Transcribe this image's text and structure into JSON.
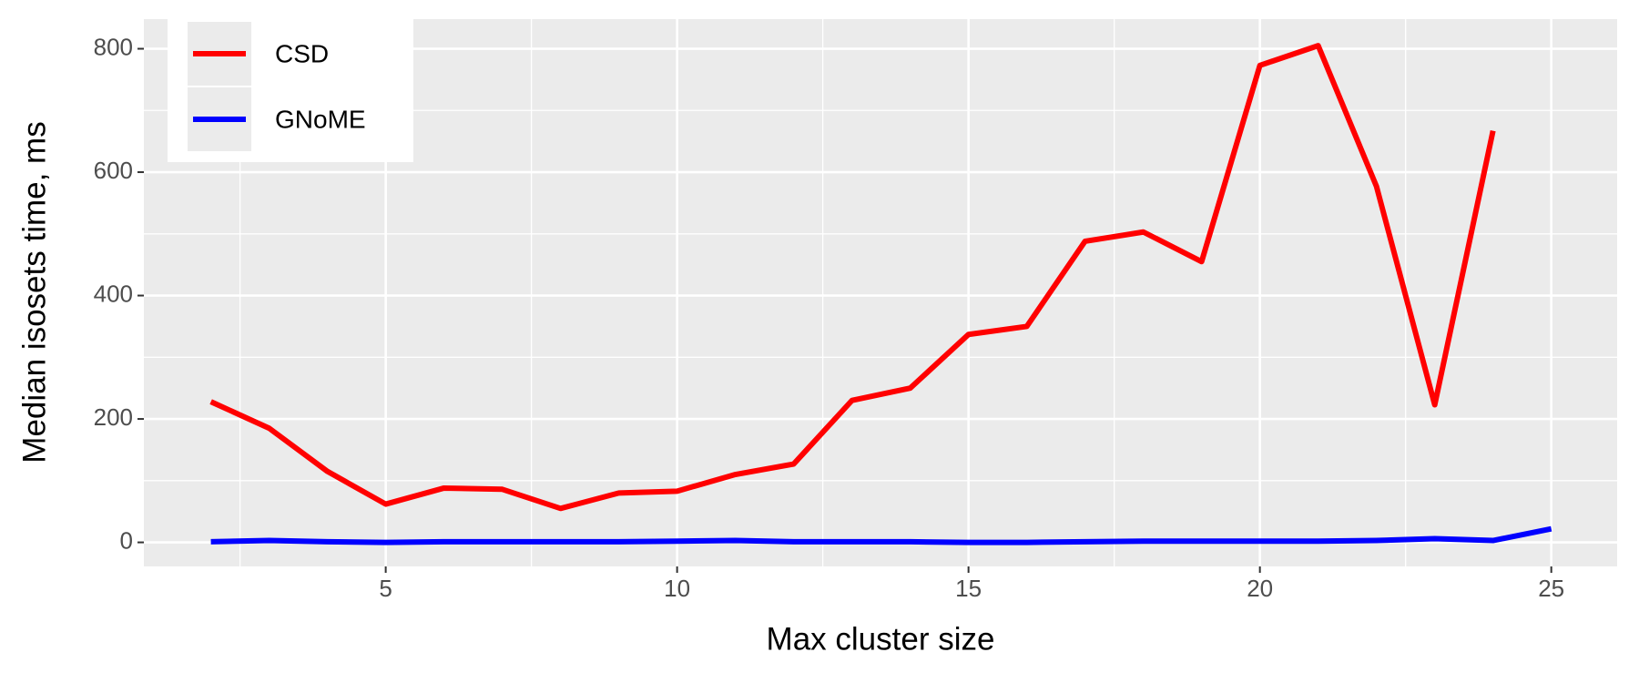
{
  "chart_data": {
    "type": "line",
    "x_label": "Max cluster size",
    "y_label": "Median isosets time, ms",
    "x": [
      2,
      3,
      4,
      5,
      6,
      7,
      8,
      9,
      10,
      11,
      12,
      13,
      14,
      15,
      16,
      17,
      18,
      19,
      20,
      21,
      22,
      23,
      24,
      25
    ],
    "series": [
      {
        "name": "CSD",
        "color": "#ff0000",
        "values": [
          228,
          185,
          115,
          62,
          88,
          86,
          55,
          80,
          83,
          110,
          127,
          230,
          250,
          337,
          350,
          488,
          503,
          455,
          773,
          805,
          577,
          223,
          667,
          null
        ]
      },
      {
        "name": "GNoME",
        "color": "#0000ff",
        "values": [
          1,
          3,
          1,
          0,
          1,
          1,
          1,
          1,
          2,
          3,
          1,
          1,
          1,
          0,
          0,
          1,
          2,
          2,
          2,
          2,
          3,
          6,
          3,
          22
        ]
      }
    ],
    "xlim": [
      0.85,
      26.13
    ],
    "xticks": [
      5,
      10,
      15,
      20,
      25
    ],
    "ylim": [
      -39,
      848
    ],
    "yticks": [
      0,
      200,
      400,
      600,
      800
    ],
    "grid": true,
    "legend": "top-left"
  }
}
